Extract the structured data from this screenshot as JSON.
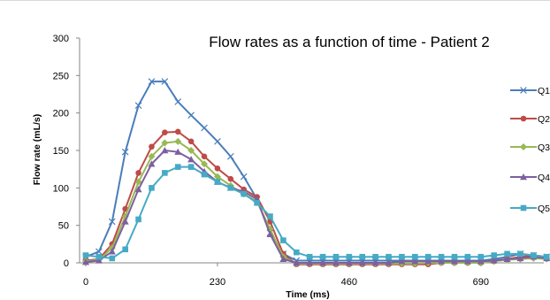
{
  "chart_data": {
    "type": "line",
    "title": "Flow rates as a function of time - Patient 2",
    "xlabel": "Time (ms)",
    "ylabel": "Flow rate (mL/s)",
    "xlim": [
      0,
      800
    ],
    "ylim": [
      0,
      300
    ],
    "x_ticks": [
      0,
      230,
      460,
      690
    ],
    "y_ticks": [
      0,
      50,
      100,
      150,
      200,
      250,
      300
    ],
    "grid": false,
    "legend_position": "right",
    "x": [
      0,
      23,
      46,
      69,
      92,
      115,
      138,
      161,
      184,
      207,
      230,
      253,
      276,
      299,
      322,
      345,
      368,
      391,
      414,
      437,
      460,
      483,
      506,
      529,
      552,
      575,
      598,
      621,
      644,
      667,
      690,
      713,
      736,
      759,
      782,
      805
    ],
    "series": [
      {
        "name": "Q1",
        "color": "#4a7ebb",
        "marker": "x",
        "values": [
          8,
          15,
          55,
          148,
          210,
          242,
          242,
          215,
          197,
          180,
          162,
          142,
          115,
          85,
          40,
          12,
          3,
          3,
          3,
          3,
          3,
          3,
          3,
          3,
          3,
          3,
          3,
          3,
          3,
          3,
          3,
          5,
          8,
          12,
          10,
          8
        ]
      },
      {
        "name": "Q2",
        "color": "#be4b48",
        "marker": "circle",
        "values": [
          3,
          5,
          25,
          72,
          120,
          155,
          174,
          175,
          162,
          142,
          126,
          112,
          98,
          88,
          55,
          12,
          -2,
          -2,
          -2,
          -2,
          -2,
          -2,
          -2,
          -2,
          -2,
          -2,
          -2,
          0,
          0,
          0,
          0,
          2,
          5,
          8,
          10,
          8
        ]
      },
      {
        "name": "Q3",
        "color": "#98b954",
        "marker": "diamond",
        "values": [
          2,
          4,
          20,
          62,
          108,
          142,
          160,
          162,
          150,
          132,
          115,
          103,
          92,
          82,
          45,
          8,
          -1,
          -1,
          -1,
          -1,
          -1,
          -1,
          -1,
          -1,
          -1,
          -1,
          0,
          0,
          0,
          0,
          0,
          2,
          4,
          5,
          6,
          5
        ]
      },
      {
        "name": "Q4",
        "color": "#7d60a0",
        "marker": "triangle",
        "values": [
          1,
          3,
          15,
          55,
          98,
          132,
          150,
          148,
          138,
          122,
          108,
          100,
          95,
          85,
          38,
          5,
          0,
          0,
          0,
          0,
          0,
          0,
          0,
          0,
          2,
          2,
          2,
          2,
          2,
          2,
          2,
          3,
          5,
          6,
          8,
          6
        ]
      },
      {
        "name": "Q5",
        "color": "#46aac5",
        "marker": "square",
        "values": [
          10,
          8,
          6,
          18,
          58,
          100,
          120,
          128,
          128,
          118,
          108,
          100,
          92,
          80,
          62,
          30,
          14,
          8,
          8,
          8,
          8,
          8,
          8,
          8,
          8,
          8,
          8,
          8,
          8,
          8,
          8,
          10,
          12,
          12,
          10,
          8
        ]
      }
    ]
  }
}
